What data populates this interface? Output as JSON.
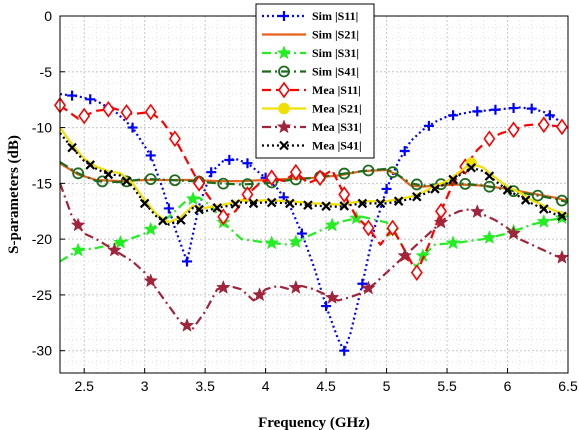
{
  "chart_data": {
    "type": "line",
    "xlabel": "Frequency (GHz)",
    "ylabel": "S-parameters (dB)",
    "xlim": [
      2.3,
      6.5
    ],
    "ylim": [
      -32,
      0
    ],
    "xticks": [
      2.5,
      3,
      3.5,
      4,
      4.5,
      5,
      5.5,
      6,
      6.5
    ],
    "yticks": [
      0,
      -5,
      -10,
      -15,
      -20,
      -25,
      -30
    ],
    "grid": "major and minor, dotted",
    "legend_position": "top-center",
    "series": [
      {
        "name": "Sim |S11|",
        "color": "#0000ff",
        "line": "dotted",
        "marker": "plus",
        "x": [
          2.3,
          2.45,
          2.6,
          2.75,
          2.9,
          3.05,
          3.15,
          3.25,
          3.35,
          3.45,
          3.55,
          3.65,
          3.75,
          3.85,
          4.0,
          4.1,
          4.2,
          4.3,
          4.4,
          4.5,
          4.6,
          4.65,
          4.7,
          4.8,
          4.9,
          5.0,
          5.1,
          5.2,
          5.3,
          5.4,
          5.5,
          5.6,
          5.7,
          5.8,
          5.9,
          6.0,
          6.1,
          6.2,
          6.3,
          6.4,
          6.5
        ],
        "y": [
          -7.0,
          -7.2,
          -7.6,
          -8.5,
          -10.0,
          -12.5,
          -15.5,
          -19.0,
          -22.0,
          -17.0,
          -14.0,
          -13.0,
          -12.8,
          -13.2,
          -14.5,
          -15.5,
          -17.0,
          -19.5,
          -22.5,
          -26.0,
          -29.0,
          -30.0,
          -28.5,
          -24.0,
          -19.0,
          -15.5,
          -13.0,
          -11.2,
          -10.2,
          -9.5,
          -9.0,
          -8.8,
          -8.6,
          -8.5,
          -8.4,
          -8.3,
          -8.2,
          -8.3,
          -8.6,
          -9.2,
          -10.0
        ],
        "markers_x": [
          2.4,
          2.55,
          2.7,
          2.9,
          3.05,
          3.2,
          3.35,
          3.55,
          3.7,
          3.85,
          4.0,
          4.15,
          4.3,
          4.5,
          4.65,
          4.8,
          5.0,
          5.15,
          5.35,
          5.55,
          5.75,
          5.9,
          6.05,
          6.2,
          6.35
        ]
      },
      {
        "name": "Sim |S21|",
        "color": "#e8601c",
        "line": "solid",
        "marker": "none",
        "x": [
          2.3,
          2.45,
          2.6,
          2.8,
          3.0,
          3.2,
          3.4,
          3.6,
          3.8,
          4.0,
          4.2,
          4.4,
          4.6,
          4.8,
          5.0,
          5.1,
          5.2,
          5.3,
          5.4,
          5.6,
          5.8,
          6.0,
          6.2,
          6.4,
          6.5
        ],
        "y": [
          -13.2,
          -14.2,
          -14.7,
          -14.8,
          -14.7,
          -14.7,
          -14.7,
          -14.8,
          -14.8,
          -14.7,
          -14.6,
          -14.5,
          -14.3,
          -13.9,
          -13.8,
          -14.3,
          -15.2,
          -15.3,
          -15.2,
          -15.1,
          -15.2,
          -15.5,
          -15.9,
          -16.3,
          -16.6
        ]
      },
      {
        "name": "Sim |S31|",
        "color": "#22ee22",
        "line": "dashdot",
        "marker": "star",
        "x": [
          2.3,
          2.45,
          2.6,
          2.8,
          3.0,
          3.2,
          3.35,
          3.45,
          3.55,
          3.65,
          3.8,
          4.0,
          4.2,
          4.4,
          4.6,
          4.8,
          5.0,
          5.1,
          5.2,
          5.25,
          5.3,
          5.4,
          5.6,
          5.8,
          6.0,
          6.2,
          6.35,
          6.5
        ],
        "y": [
          -22.0,
          -21.0,
          -20.8,
          -20.3,
          -19.5,
          -18.0,
          -16.5,
          -16.3,
          -17.0,
          -18.5,
          -20.0,
          -20.3,
          -20.5,
          -19.5,
          -18.5,
          -18.0,
          -18.5,
          -20.0,
          -22.0,
          -22.5,
          -21.5,
          -20.5,
          -20.3,
          -20.0,
          -19.5,
          -18.7,
          -18.3,
          -18.0
        ],
        "markers_x": [
          2.45,
          2.8,
          3.05,
          3.4,
          3.65,
          4.05,
          4.25,
          4.55,
          4.75,
          5.05,
          5.3,
          5.55,
          5.85,
          6.05,
          6.3,
          6.45
        ]
      },
      {
        "name": "Sim |S41|",
        "color": "#1e6b1e",
        "line": "dashdot",
        "marker": "circle",
        "x": [
          2.3,
          2.45,
          2.6,
          2.8,
          3.0,
          3.2,
          3.4,
          3.6,
          3.8,
          4.0,
          4.2,
          4.4,
          4.6,
          4.8,
          5.0,
          5.1,
          5.2,
          5.3,
          5.4,
          5.6,
          5.8,
          6.0,
          6.2,
          6.4,
          6.5
        ],
        "y": [
          -13.1,
          -14.1,
          -14.8,
          -14.9,
          -14.6,
          -14.7,
          -14.8,
          -15.0,
          -15.1,
          -15.0,
          -14.7,
          -14.5,
          -14.2,
          -13.9,
          -13.7,
          -14.3,
          -15.0,
          -15.2,
          -15.1,
          -15.0,
          -15.2,
          -15.6,
          -16.0,
          -16.4,
          -16.7
        ],
        "markers_x": [
          2.45,
          2.65,
          2.85,
          3.05,
          3.25,
          3.45,
          3.65,
          3.85,
          4.05,
          4.25,
          4.45,
          4.65,
          4.85,
          5.05,
          5.25,
          5.45,
          5.65,
          5.85,
          6.05,
          6.25,
          6.45
        ]
      },
      {
        "name": "Mea |S11|",
        "color": "#ff0000",
        "line": "dashed",
        "marker": "diamond",
        "x": [
          2.3,
          2.45,
          2.6,
          2.75,
          2.9,
          3.05,
          3.15,
          3.25,
          3.35,
          3.45,
          3.55,
          3.65,
          3.75,
          3.85,
          3.95,
          4.05,
          4.15,
          4.25,
          4.35,
          4.45,
          4.55,
          4.65,
          4.75,
          4.85,
          4.95,
          5.05,
          5.15,
          5.25,
          5.35,
          5.45,
          5.55,
          5.65,
          5.75,
          5.85,
          5.95,
          6.05,
          6.15,
          6.25,
          6.35,
          6.5
        ],
        "y": [
          -8.0,
          -9.2,
          -8.5,
          -8.3,
          -8.8,
          -8.6,
          -9.5,
          -11.0,
          -13.0,
          -15.0,
          -16.5,
          -18.0,
          -17.5,
          -16.0,
          -15.0,
          -14.5,
          -14.8,
          -14.0,
          -15.0,
          -14.5,
          -13.8,
          -16.0,
          -18.0,
          -19.0,
          -20.5,
          -19.0,
          -21.0,
          -23.0,
          -20.5,
          -17.5,
          -15.0,
          -13.5,
          -12.0,
          -11.0,
          -10.5,
          -10.2,
          -9.8,
          -9.7,
          -9.8,
          -10.0
        ],
        "markers_x": [
          2.3,
          2.5,
          2.7,
          2.85,
          3.05,
          3.25,
          3.45,
          3.65,
          3.85,
          4.05,
          4.25,
          4.45,
          4.65,
          4.85,
          5.05,
          5.25,
          5.45,
          5.65,
          5.85,
          6.05,
          6.3,
          6.45
        ]
      },
      {
        "name": "Mea |S21|",
        "color": "#f0e000",
        "line": "solid",
        "marker": "circle-filled",
        "x": [
          2.3,
          2.4,
          2.5,
          2.6,
          2.7,
          2.8,
          2.9,
          3.0,
          3.1,
          3.2,
          3.3,
          3.4,
          3.5,
          3.6,
          3.7,
          3.8,
          3.9,
          4.0,
          4.2,
          4.4,
          4.6,
          4.8,
          5.0,
          5.2,
          5.3,
          5.4,
          5.5,
          5.6,
          5.7,
          5.8,
          5.9,
          6.0,
          6.1,
          6.2,
          6.3,
          6.4,
          6.5
        ],
        "y": [
          -10.0,
          -11.5,
          -12.8,
          -13.5,
          -13.9,
          -14.1,
          -15.0,
          -16.5,
          -17.8,
          -18.5,
          -18.0,
          -17.0,
          -17.2,
          -17.0,
          -16.8,
          -16.5,
          -16.6,
          -16.5,
          -16.6,
          -16.8,
          -16.9,
          -16.6,
          -16.6,
          -16.2,
          -15.8,
          -15.2,
          -14.8,
          -14.0,
          -13.2,
          -13.6,
          -14.5,
          -15.3,
          -15.8,
          -16.5,
          -17.0,
          -17.5,
          -17.8
        ],
        "markers_x": [
          5.7
        ]
      },
      {
        "name": "Mea |S31|",
        "color": "#a0243c",
        "line": "dashdot",
        "marker": "star",
        "x": [
          2.3,
          2.4,
          2.5,
          2.6,
          2.75,
          2.9,
          3.0,
          3.1,
          3.2,
          3.3,
          3.4,
          3.5,
          3.6,
          3.7,
          3.8,
          3.9,
          4.0,
          4.1,
          4.2,
          4.3,
          4.4,
          4.5,
          4.6,
          4.7,
          4.8,
          4.9,
          5.0,
          5.1,
          5.2,
          5.3,
          5.4,
          5.5,
          5.6,
          5.7,
          5.8,
          5.9,
          6.0,
          6.1,
          6.2,
          6.3,
          6.4,
          6.5
        ],
        "y": [
          -15.0,
          -18.0,
          -19.5,
          -20.0,
          -21.0,
          -22.0,
          -23.0,
          -24.5,
          -26.0,
          -27.5,
          -28.0,
          -26.5,
          -24.5,
          -24.2,
          -24.5,
          -25.5,
          -24.5,
          -24.2,
          -24.5,
          -24.2,
          -24.5,
          -25.0,
          -25.5,
          -25.2,
          -24.8,
          -24.0,
          -23.0,
          -22.0,
          -21.0,
          -20.0,
          -19.0,
          -18.0,
          -17.5,
          -17.3,
          -17.8,
          -18.3,
          -19.0,
          -20.0,
          -20.5,
          -21.0,
          -21.5,
          -21.8
        ],
        "markers_x": [
          2.45,
          2.75,
          3.05,
          3.35,
          3.65,
          3.95,
          4.25,
          4.55,
          4.85,
          5.15,
          5.45,
          5.75,
          6.05,
          6.45
        ]
      },
      {
        "name": "Mea |S41|",
        "color": "#000000",
        "line": "dotted",
        "marker": "x",
        "x": [
          2.3,
          2.4,
          2.5,
          2.6,
          2.7,
          2.8,
          2.9,
          3.0,
          3.1,
          3.2,
          3.3,
          3.4,
          3.5,
          3.6,
          3.7,
          3.8,
          3.9,
          4.0,
          4.2,
          4.4,
          4.6,
          4.8,
          5.0,
          5.2,
          5.3,
          5.4,
          5.5,
          5.6,
          5.7,
          5.8,
          5.9,
          6.0,
          6.1,
          6.2,
          6.3,
          6.4,
          6.5
        ],
        "y": [
          -10.5,
          -11.8,
          -13.0,
          -13.7,
          -14.2,
          -14.3,
          -15.3,
          -16.8,
          -18.0,
          -18.7,
          -18.3,
          -17.2,
          -17.5,
          -17.2,
          -17.0,
          -16.7,
          -16.8,
          -16.7,
          -16.8,
          -17.0,
          -17.1,
          -16.8,
          -16.8,
          -16.4,
          -16.0,
          -15.5,
          -15.0,
          -14.3,
          -13.6,
          -13.9,
          -14.8,
          -15.6,
          -16.2,
          -16.8,
          -17.3,
          -17.8,
          -18.1
        ],
        "markers_x": [
          2.4,
          2.55,
          2.7,
          2.85,
          3.0,
          3.15,
          3.3,
          3.45,
          3.6,
          3.75,
          3.9,
          4.05,
          4.2,
          4.35,
          4.5,
          4.65,
          4.8,
          4.95,
          5.1,
          5.25,
          5.4,
          5.55,
          5.7,
          5.85,
          6.0,
          6.15,
          6.3,
          6.45
        ]
      }
    ]
  }
}
